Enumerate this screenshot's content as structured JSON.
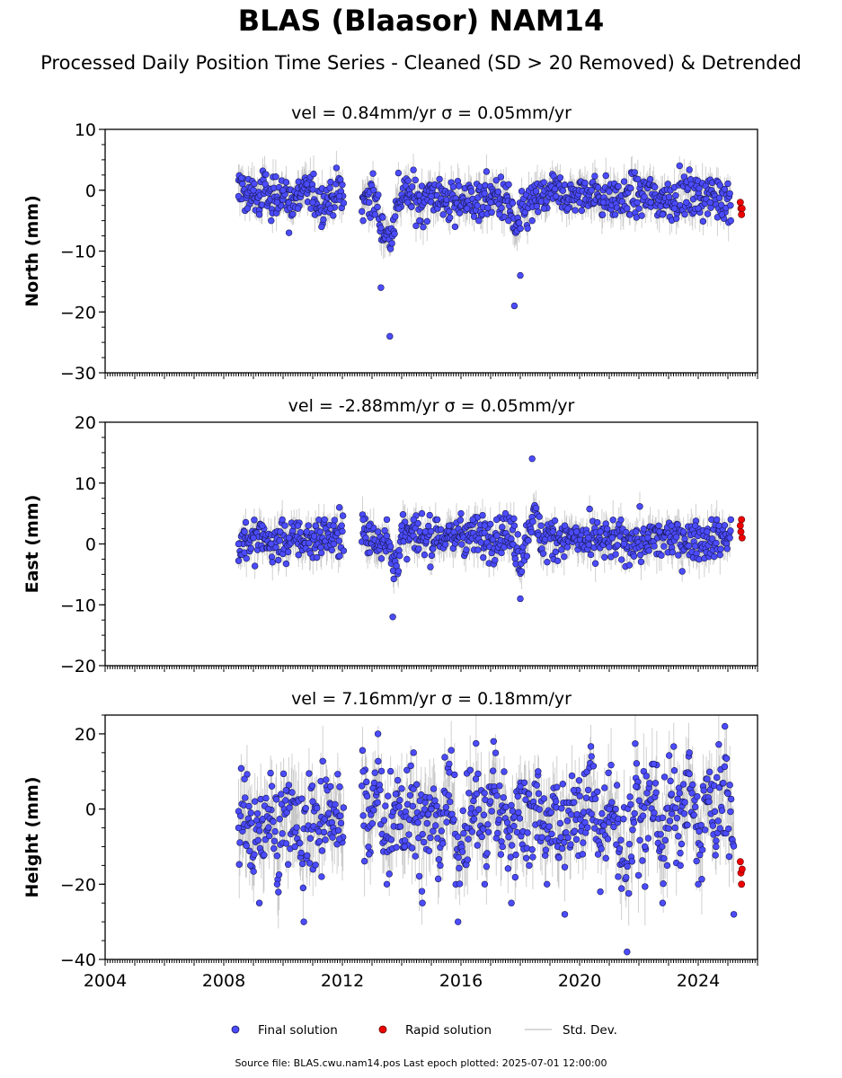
{
  "title": "BLAS (Blaasor) NAM14",
  "subtitle": "Processed Daily Position Time Series - Cleaned (SD > 20 Removed) & Detrended",
  "legend": {
    "final_label": "Final solution",
    "rapid_label": "Rapid solution",
    "std_label": "Std. Dev."
  },
  "source_text": "Source file: BLAS.cwu.nam14.pos  Last epoch plotted: 2025-07-01 12:00:00",
  "colors": {
    "final": "#4b4bff",
    "final_edge": "#1a1a55",
    "rapid": "#ee0000",
    "std": "#aaaaaa",
    "axis": "#000000"
  },
  "chart_data": [
    {
      "type": "scatter",
      "title": "vel = 0.84mm/yr   σ = 0.05mm/yr",
      "ylabel": "North (mm)",
      "xlim": [
        2004,
        2026
      ],
      "ylim": [
        -30,
        10
      ],
      "yticks": [
        10,
        0,
        -10,
        -20,
        -30
      ],
      "ytick_labels": [
        "10",
        "0",
        "−10",
        "−20",
        "−30"
      ],
      "grid": false,
      "series": [
        {
          "name": "Final solution",
          "x": [
            2008.5,
            2008.6,
            2008.8,
            2009.0,
            2009.2,
            2009.4,
            2009.6,
            2009.8,
            2010.0,
            2010.2,
            2010.5,
            2010.8,
            2011.0,
            2011.3,
            2011.6,
            2011.9,
            2012.7,
            2012.9,
            2013.1,
            2013.3,
            2013.6,
            2013.9,
            2014.2,
            2014.6,
            2015.0,
            2015.4,
            2015.8,
            2016.2,
            2016.6,
            2017.0,
            2017.3,
            2017.6,
            2017.8,
            2018.0,
            2018.4,
            2018.8,
            2019.2,
            2019.6,
            2020.0,
            2020.4,
            2020.8,
            2021.2,
            2021.6,
            2022.0,
            2022.4,
            2022.8,
            2023.2,
            2023.6,
            2024.0,
            2024.4,
            2024.8,
            2025.1
          ],
          "y": [
            -1,
            2,
            -3,
            0,
            -4,
            1,
            -5,
            -2,
            0,
            -7,
            -3,
            1,
            -2,
            -6,
            -3,
            -1,
            -5,
            -2,
            -4,
            -16,
            -24,
            -3,
            -2,
            -5,
            -1,
            -4,
            -6,
            -3,
            -5,
            -2,
            -4,
            -5,
            -19,
            -14,
            -5,
            -3,
            -1,
            -3,
            -2,
            0,
            -2,
            -4,
            -3,
            -3,
            -2,
            -4,
            -3,
            -2,
            -3,
            -2,
            -4,
            -5
          ]
        },
        {
          "name": "Rapid solution",
          "x": [
            2025.42,
            2025.44,
            2025.46,
            2025.48
          ],
          "y": [
            -2,
            -3,
            -4,
            -3
          ]
        }
      ]
    },
    {
      "type": "scatter",
      "title": "vel = -2.88mm/yr   σ = 0.05mm/yr",
      "ylabel": "East (mm)",
      "xlim": [
        2004,
        2026
      ],
      "ylim": [
        -20,
        20
      ],
      "yticks": [
        20,
        10,
        0,
        -10,
        -20
      ],
      "ytick_labels": [
        "20",
        "10",
        "0",
        "−10",
        "−20"
      ],
      "grid": false,
      "series": [
        {
          "name": "Final solution",
          "x": [
            2008.5,
            2008.7,
            2009.0,
            2009.3,
            2009.6,
            2009.9,
            2010.2,
            2010.5,
            2010.8,
            2011.1,
            2011.4,
            2011.7,
            2011.9,
            2012.7,
            2012.9,
            2013.2,
            2013.5,
            2013.7,
            2014.0,
            2014.4,
            2014.8,
            2015.2,
            2015.6,
            2016.0,
            2016.4,
            2016.8,
            2017.2,
            2017.5,
            2017.8,
            2018.0,
            2018.4,
            2018.7,
            2019.1,
            2019.5,
            2019.9,
            2020.3,
            2020.7,
            2021.1,
            2021.5,
            2021.9,
            2022.3,
            2022.7,
            2023.1,
            2023.5,
            2023.9,
            2024.3,
            2024.7,
            2025.1
          ],
          "y": [
            0,
            2,
            1,
            3,
            0,
            2,
            1,
            3,
            2,
            3,
            4,
            3,
            6,
            4,
            3,
            2,
            4,
            -12,
            3,
            4,
            2,
            4,
            3,
            5,
            4,
            3,
            4,
            5,
            3,
            -9,
            14,
            3,
            2,
            3,
            2,
            1,
            2,
            1,
            0,
            2,
            1,
            2,
            3,
            2,
            3,
            2,
            3,
            4
          ]
        },
        {
          "name": "Rapid solution",
          "x": [
            2025.42,
            2025.44,
            2025.46,
            2025.48
          ],
          "y": [
            3,
            2,
            4,
            1
          ]
        }
      ]
    },
    {
      "type": "scatter",
      "title": "vel = 7.16mm/yr   σ = 0.18mm/yr",
      "ylabel": "Height (mm)",
      "xlim": [
        2004,
        2026
      ],
      "ylim": [
        -40,
        25
      ],
      "yticks": [
        20,
        0,
        -20,
        -40
      ],
      "ytick_labels": [
        "20",
        "0",
        "−20",
        "−40"
      ],
      "xticks": [
        2004,
        2008,
        2012,
        2016,
        2020,
        2024
      ],
      "xtick_labels": [
        "2004",
        "2008",
        "2012",
        "2016",
        "2020",
        "2024"
      ],
      "grid": false,
      "series": [
        {
          "name": "Final solution",
          "x": [
            2008.5,
            2008.7,
            2008.9,
            2009.2,
            2009.5,
            2009.8,
            2010.1,
            2010.4,
            2010.7,
            2011.0,
            2011.3,
            2011.6,
            2011.9,
            2012.7,
            2012.9,
            2013.2,
            2013.5,
            2013.8,
            2014.1,
            2014.4,
            2014.7,
            2015.0,
            2015.3,
            2015.6,
            2015.9,
            2016.2,
            2016.5,
            2016.8,
            2017.1,
            2017.4,
            2017.7,
            2018.0,
            2018.3,
            2018.6,
            2018.9,
            2019.2,
            2019.5,
            2019.8,
            2020.1,
            2020.4,
            2020.7,
            2021.0,
            2021.3,
            2021.6,
            2021.9,
            2022.2,
            2022.5,
            2022.8,
            2023.1,
            2023.4,
            2023.7,
            2024.0,
            2024.3,
            2024.6,
            2024.9,
            2025.2
          ],
          "y": [
            -5,
            8,
            -15,
            -25,
            0,
            -20,
            5,
            -10,
            -30,
            2,
            -18,
            6,
            -8,
            10,
            -12,
            20,
            -20,
            4,
            -10,
            15,
            -25,
            0,
            -15,
            12,
            -30,
            -5,
            8,
            -20,
            18,
            -10,
            -25,
            6,
            -15,
            10,
            -20,
            2,
            -28,
            5,
            -12,
            14,
            -22,
            0,
            -18,
            -38,
            6,
            -10,
            12,
            -25,
            4,
            -15,
            15,
            -20,
            8,
            -10,
            22,
            -28
          ]
        },
        {
          "name": "Rapid solution",
          "x": [
            2025.42,
            2025.44,
            2025.46,
            2025.48
          ],
          "y": [
            -14,
            -17,
            -20,
            -16
          ]
        }
      ]
    }
  ]
}
